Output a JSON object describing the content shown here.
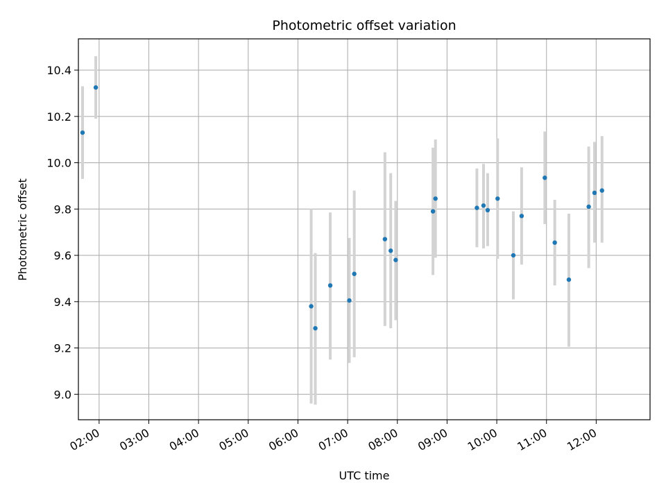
{
  "chart_data": {
    "type": "scatter",
    "title": "Photometric offset variation",
    "xlabel": "UTC time",
    "ylabel": "Photometric offset",
    "x_ticks": [
      "02:00",
      "03:00",
      "04:00",
      "05:00",
      "06:00",
      "07:00",
      "08:00",
      "09:00",
      "10:00",
      "11:00",
      "12:00"
    ],
    "y_ticks": [
      "9.0",
      "9.2",
      "9.4",
      "9.6",
      "9.8",
      "10.0",
      "10.2",
      "10.4"
    ],
    "xlim": [
      "01:35",
      "13:05"
    ],
    "ylim": [
      8.89,
      10.535
    ],
    "grid": true,
    "point_color": "#1f77b4",
    "errorbar_color": "#d3d3d3",
    "points": [
      {
        "x": "01:40",
        "y": 10.13,
        "low": 9.93,
        "high": 10.33
      },
      {
        "x": "01:56",
        "y": 10.325,
        "low": 10.19,
        "high": 10.46
      },
      {
        "x": "06:16",
        "y": 9.38,
        "low": 8.96,
        "high": 9.8
      },
      {
        "x": "06:21",
        "y": 9.285,
        "low": 8.955,
        "high": 9.61
      },
      {
        "x": "06:39",
        "y": 9.47,
        "low": 9.15,
        "high": 9.785
      },
      {
        "x": "07:02",
        "y": 9.405,
        "low": 9.135,
        "high": 9.675
      },
      {
        "x": "07:08",
        "y": 9.52,
        "low": 9.16,
        "high": 9.88
      },
      {
        "x": "07:45",
        "y": 9.67,
        "low": 9.295,
        "high": 10.045
      },
      {
        "x": "07:52",
        "y": 9.62,
        "low": 9.285,
        "high": 9.955
      },
      {
        "x": "07:58",
        "y": 9.58,
        "low": 9.32,
        "high": 9.835
      },
      {
        "x": "08:43",
        "y": 9.79,
        "low": 9.515,
        "high": 10.065
      },
      {
        "x": "08:46",
        "y": 9.845,
        "low": 9.59,
        "high": 10.1
      },
      {
        "x": "09:36",
        "y": 9.805,
        "low": 9.635,
        "high": 9.975
      },
      {
        "x": "09:44",
        "y": 9.815,
        "low": 9.63,
        "high": 9.995
      },
      {
        "x": "09:49",
        "y": 9.795,
        "low": 9.64,
        "high": 9.955
      },
      {
        "x": "10:01",
        "y": 9.845,
        "low": 9.585,
        "high": 10.105
      },
      {
        "x": "10:20",
        "y": 9.6,
        "low": 9.41,
        "high": 9.79
      },
      {
        "x": "10:30",
        "y": 9.77,
        "low": 9.56,
        "high": 9.98
      },
      {
        "x": "10:58",
        "y": 9.935,
        "low": 9.735,
        "high": 10.135
      },
      {
        "x": "11:10",
        "y": 9.655,
        "low": 9.47,
        "high": 9.84
      },
      {
        "x": "11:27",
        "y": 9.495,
        "low": 9.205,
        "high": 9.78
      },
      {
        "x": "11:51",
        "y": 9.81,
        "low": 9.545,
        "high": 10.07
      },
      {
        "x": "11:58",
        "y": 9.87,
        "low": 9.655,
        "high": 10.09
      },
      {
        "x": "12:07",
        "y": 9.88,
        "low": 9.655,
        "high": 10.115
      }
    ]
  }
}
